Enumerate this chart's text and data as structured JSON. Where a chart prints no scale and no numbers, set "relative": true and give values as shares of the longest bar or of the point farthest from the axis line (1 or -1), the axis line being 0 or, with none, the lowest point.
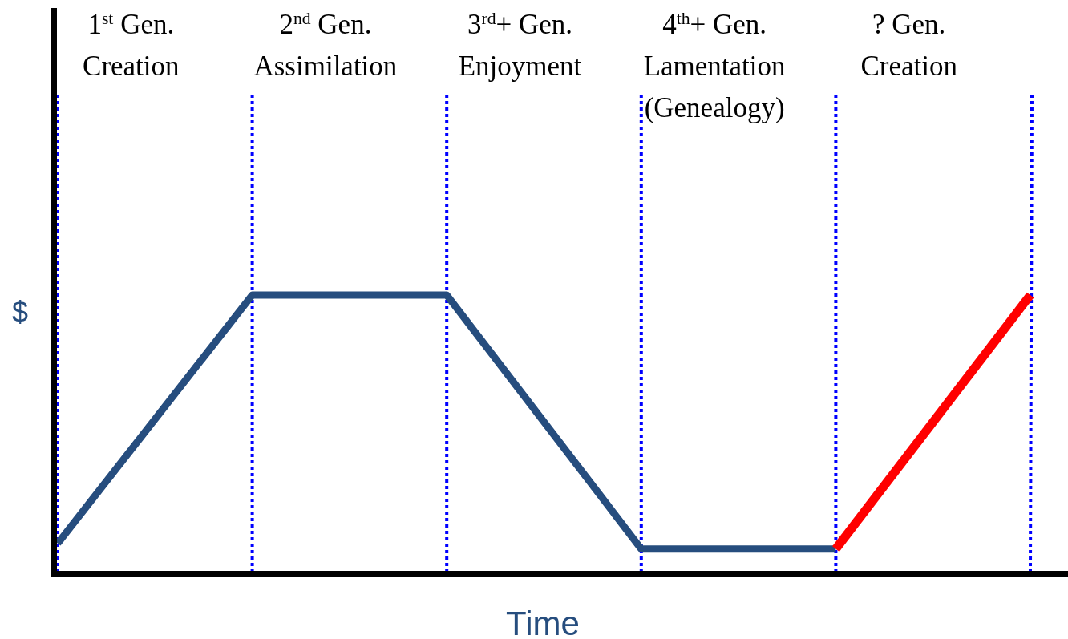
{
  "chart_data": {
    "type": "line",
    "relative": true,
    "xlabel": "Time",
    "ylabel": "$",
    "categories": [
      null,
      null,
      null,
      null,
      null,
      null
    ],
    "grid": "x",
    "line_style": "solid",
    "series": [
      {
        "color": "#264d7e",
        "values": [
          0.11,
          1,
          1,
          0.09,
          0.09,
          null
        ]
      },
      {
        "color": "#ff0000",
        "values": [
          null,
          null,
          null,
          null,
          0.09,
          1
        ]
      }
    ],
    "annotations": [
      "1$^{st}$ Gen.\nCreation",
      "2$^{nd}$ Gen.\nAssimilation",
      "3$^{rd}$+ Gen.\nEnjoyment",
      "4$^{th}$+ Gen.\nLamentation\n(Genealogy)",
      "? Gen.\nCreation"
    ]
  }
}
